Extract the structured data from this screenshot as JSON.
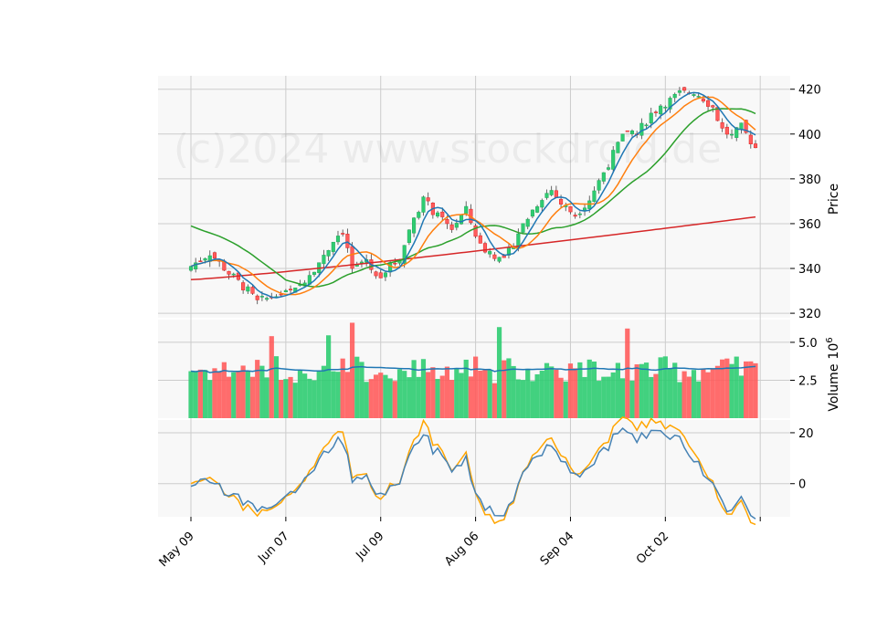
{
  "watermark": "(c)2024 www.stockdroid.de",
  "colors": {
    "up": "#26a65b",
    "up_fill": "#2ecc71",
    "down": "#e02020",
    "down_fill": "#ff5c5c",
    "ma_fast": "#1f77b4",
    "ma_mid": "#ff7f0e",
    "ma_slow": "#2ca02c",
    "ma_long": "#d62728",
    "vol_ma": "#1f77b4",
    "osc_a": "#4682b4",
    "osc_b": "#ffa500",
    "panel_bg": "#f8f8f8",
    "grid": "#cccccc"
  },
  "chart_data": [
    {
      "type": "candlestick",
      "ylabel": "Price",
      "ylim": [
        318,
        426
      ],
      "yticks": [
        "320",
        "340",
        "360",
        "380",
        "400",
        "420"
      ],
      "grid": true,
      "watermark_text": "(c)2024 www.stockdroid.de",
      "series_lines": [
        "ma_fast",
        "ma_mid",
        "ma_slow",
        "ma_long"
      ],
      "long_ma_range": [
        335,
        363
      ]
    },
    {
      "type": "bar",
      "ylabel": "Volume",
      "ylabel_exponent": "10",
      "ylabel_power": "6",
      "ylim": [
        0,
        6.5
      ],
      "yticks": [
        "2.5",
        "5.0"
      ]
    },
    {
      "type": "line",
      "ylim": [
        -13,
        25
      ],
      "yticks": [
        "0",
        "20"
      ],
      "xticks": [
        "May 09",
        "Jun 07",
        "Jul 09",
        "Aug 06",
        "Sep 04",
        "Oct 02"
      ],
      "xtick_index": [
        0,
        20,
        40,
        60,
        80,
        100,
        120
      ],
      "n_points": 120
    }
  ]
}
